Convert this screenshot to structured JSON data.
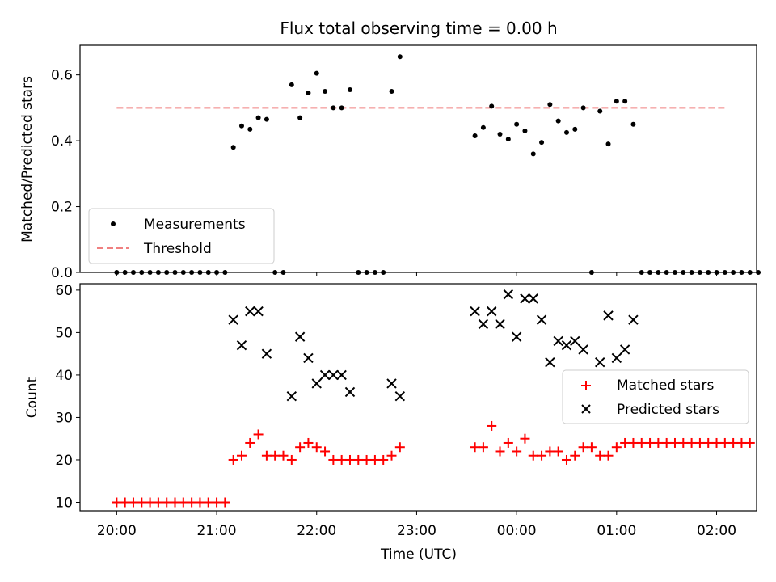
{
  "chart_data": [
    {
      "type": "scatter",
      "title": "Flux total observing time = 0.00 h",
      "xlabel": "",
      "ylabel": "Matched/Predicted stars",
      "ylim": [
        0,
        0.69
      ],
      "xlim": [
        "19:38",
        "02:24"
      ],
      "y_ticks": [
        "0.0",
        "0.2",
        "0.4",
        "0.6"
      ],
      "x_ticks": [
        "20:00",
        "21:00",
        "22:00",
        "23:00",
        "00:00",
        "01:00",
        "02:00"
      ],
      "legend": {
        "placement": "lower-left",
        "entries": [
          "Measurements",
          "Threshold"
        ]
      },
      "threshold": {
        "name": "Threshold",
        "value": 0.5,
        "x_start": "20:00",
        "x_end": "02:05",
        "color": "#f08080"
      },
      "series": [
        {
          "name": "Measurements",
          "color": "#000000",
          "points": [
            [
              "20:00",
              0
            ],
            [
              "20:05",
              0
            ],
            [
              "20:10",
              0
            ],
            [
              "20:15",
              0
            ],
            [
              "20:20",
              0
            ],
            [
              "20:25",
              0
            ],
            [
              "20:30",
              0
            ],
            [
              "20:35",
              0
            ],
            [
              "20:40",
              0
            ],
            [
              "20:45",
              0
            ],
            [
              "20:50",
              0
            ],
            [
              "20:55",
              0
            ],
            [
              "21:00",
              0
            ],
            [
              "21:05",
              0
            ],
            [
              "21:10",
              0.38
            ],
            [
              "21:15",
              0.445
            ],
            [
              "21:20",
              0.435
            ],
            [
              "21:25",
              0.47
            ],
            [
              "21:30",
              0.465
            ],
            [
              "21:35",
              0
            ],
            [
              "21:40",
              0
            ],
            [
              "21:45",
              0.57
            ],
            [
              "21:50",
              0.47
            ],
            [
              "21:55",
              0.545
            ],
            [
              "22:00",
              0.605
            ],
            [
              "22:05",
              0.55
            ],
            [
              "22:10",
              0.5
            ],
            [
              "22:15",
              0.5
            ],
            [
              "22:20",
              0.555
            ],
            [
              "22:25",
              0
            ],
            [
              "22:30",
              0
            ],
            [
              "22:35",
              0
            ],
            [
              "22:40",
              0
            ],
            [
              "22:45",
              0.55
            ],
            [
              "22:50",
              0.655
            ],
            [
              "23:35",
              0.415
            ],
            [
              "23:40",
              0.44
            ],
            [
              "23:45",
              0.505
            ],
            [
              "23:50",
              0.42
            ],
            [
              "23:55",
              0.405
            ],
            [
              "00:00",
              0.45
            ],
            [
              "00:05",
              0.43
            ],
            [
              "00:10",
              0.36
            ],
            [
              "00:15",
              0.395
            ],
            [
              "00:20",
              0.51
            ],
            [
              "00:25",
              0.46
            ],
            [
              "00:30",
              0.425
            ],
            [
              "00:35",
              0.435
            ],
            [
              "00:40",
              0.5
            ],
            [
              "00:45",
              0
            ],
            [
              "00:50",
              0.49
            ],
            [
              "00:55",
              0.39
            ],
            [
              "01:00",
              0.52
            ],
            [
              "01:05",
              0.52
            ],
            [
              "01:10",
              0.45
            ],
            [
              "01:15",
              0
            ],
            [
              "01:20",
              0
            ],
            [
              "01:25",
              0
            ],
            [
              "01:30",
              0
            ],
            [
              "01:35",
              0
            ],
            [
              "01:40",
              0
            ],
            [
              "01:45",
              0
            ],
            [
              "01:50",
              0
            ],
            [
              "01:55",
              0
            ],
            [
              "02:00",
              0
            ],
            [
              "02:05",
              0
            ],
            [
              "02:10",
              0
            ],
            [
              "02:15",
              0
            ],
            [
              "02:20",
              0
            ],
            [
              "02:25",
              0
            ]
          ]
        }
      ]
    },
    {
      "type": "scatter",
      "title": "",
      "xlabel": "Time (UTC)",
      "ylabel": "Count",
      "ylim": [
        8,
        61.5
      ],
      "xlim": [
        "19:38",
        "02:24"
      ],
      "y_ticks": [
        "10",
        "20",
        "30",
        "40",
        "50",
        "60"
      ],
      "x_ticks": [
        "20:00",
        "21:00",
        "22:00",
        "23:00",
        "00:00",
        "01:00",
        "02:00"
      ],
      "legend": {
        "placement": "center-right",
        "entries": [
          "Matched stars",
          "Predicted stars"
        ]
      },
      "series": [
        {
          "name": "Matched stars",
          "marker": "plus",
          "color": "#ff0000",
          "points": [
            [
              "20:00",
              10
            ],
            [
              "20:05",
              10
            ],
            [
              "20:10",
              10
            ],
            [
              "20:15",
              10
            ],
            [
              "20:20",
              10
            ],
            [
              "20:25",
              10
            ],
            [
              "20:30",
              10
            ],
            [
              "20:35",
              10
            ],
            [
              "20:40",
              10
            ],
            [
              "20:45",
              10
            ],
            [
              "20:50",
              10
            ],
            [
              "20:55",
              10
            ],
            [
              "21:00",
              10
            ],
            [
              "21:05",
              10
            ],
            [
              "21:10",
              20
            ],
            [
              "21:15",
              21
            ],
            [
              "21:20",
              24
            ],
            [
              "21:25",
              26
            ],
            [
              "21:30",
              21
            ],
            [
              "21:35",
              21
            ],
            [
              "21:40",
              21
            ],
            [
              "21:45",
              20
            ],
            [
              "21:50",
              23
            ],
            [
              "21:55",
              24
            ],
            [
              "22:00",
              23
            ],
            [
              "22:05",
              22
            ],
            [
              "22:10",
              20
            ],
            [
              "22:15",
              20
            ],
            [
              "22:20",
              20
            ],
            [
              "22:25",
              20
            ],
            [
              "22:30",
              20
            ],
            [
              "22:35",
              20
            ],
            [
              "22:40",
              20
            ],
            [
              "22:45",
              21
            ],
            [
              "22:50",
              23
            ],
            [
              "23:35",
              23
            ],
            [
              "23:40",
              23
            ],
            [
              "23:45",
              28
            ],
            [
              "23:50",
              22
            ],
            [
              "23:55",
              24
            ],
            [
              "00:00",
              22
            ],
            [
              "00:05",
              25
            ],
            [
              "00:10",
              21
            ],
            [
              "00:15",
              21
            ],
            [
              "00:20",
              22
            ],
            [
              "00:25",
              22
            ],
            [
              "00:30",
              20
            ],
            [
              "00:35",
              21
            ],
            [
              "00:40",
              23
            ],
            [
              "00:45",
              23
            ],
            [
              "00:50",
              21
            ],
            [
              "00:55",
              21
            ],
            [
              "01:00",
              23
            ],
            [
              "01:05",
              24
            ],
            [
              "01:10",
              24
            ],
            [
              "01:15",
              24
            ],
            [
              "01:20",
              24
            ],
            [
              "01:25",
              24
            ],
            [
              "01:30",
              24
            ],
            [
              "01:35",
              24
            ],
            [
              "01:40",
              24
            ],
            [
              "01:45",
              24
            ],
            [
              "01:50",
              24
            ],
            [
              "01:55",
              24
            ],
            [
              "02:00",
              24
            ],
            [
              "02:05",
              24
            ],
            [
              "02:10",
              24
            ],
            [
              "02:15",
              24
            ],
            [
              "02:20",
              24
            ]
          ]
        },
        {
          "name": "Predicted stars",
          "marker": "x",
          "color": "#000000",
          "points": [
            [
              "21:10",
              53
            ],
            [
              "21:15",
              47
            ],
            [
              "21:20",
              55
            ],
            [
              "21:25",
              55
            ],
            [
              "21:30",
              45
            ],
            [
              "21:45",
              35
            ],
            [
              "21:50",
              49
            ],
            [
              "21:55",
              44
            ],
            [
              "22:00",
              38
            ],
            [
              "22:05",
              40
            ],
            [
              "22:10",
              40
            ],
            [
              "22:15",
              40
            ],
            [
              "22:20",
              36
            ],
            [
              "22:45",
              38
            ],
            [
              "22:50",
              35
            ],
            [
              "23:35",
              55
            ],
            [
              "23:40",
              52
            ],
            [
              "23:45",
              55
            ],
            [
              "23:50",
              52
            ],
            [
              "23:55",
              59
            ],
            [
              "00:00",
              49
            ],
            [
              "00:05",
              58
            ],
            [
              "00:10",
              58
            ],
            [
              "00:15",
              53
            ],
            [
              "00:20",
              43
            ],
            [
              "00:25",
              48
            ],
            [
              "00:30",
              47
            ],
            [
              "00:35",
              48
            ],
            [
              "00:40",
              46
            ],
            [
              "00:50",
              43
            ],
            [
              "00:55",
              54
            ],
            [
              "01:00",
              44
            ],
            [
              "01:05",
              46
            ],
            [
              "01:10",
              53
            ]
          ]
        }
      ]
    }
  ]
}
